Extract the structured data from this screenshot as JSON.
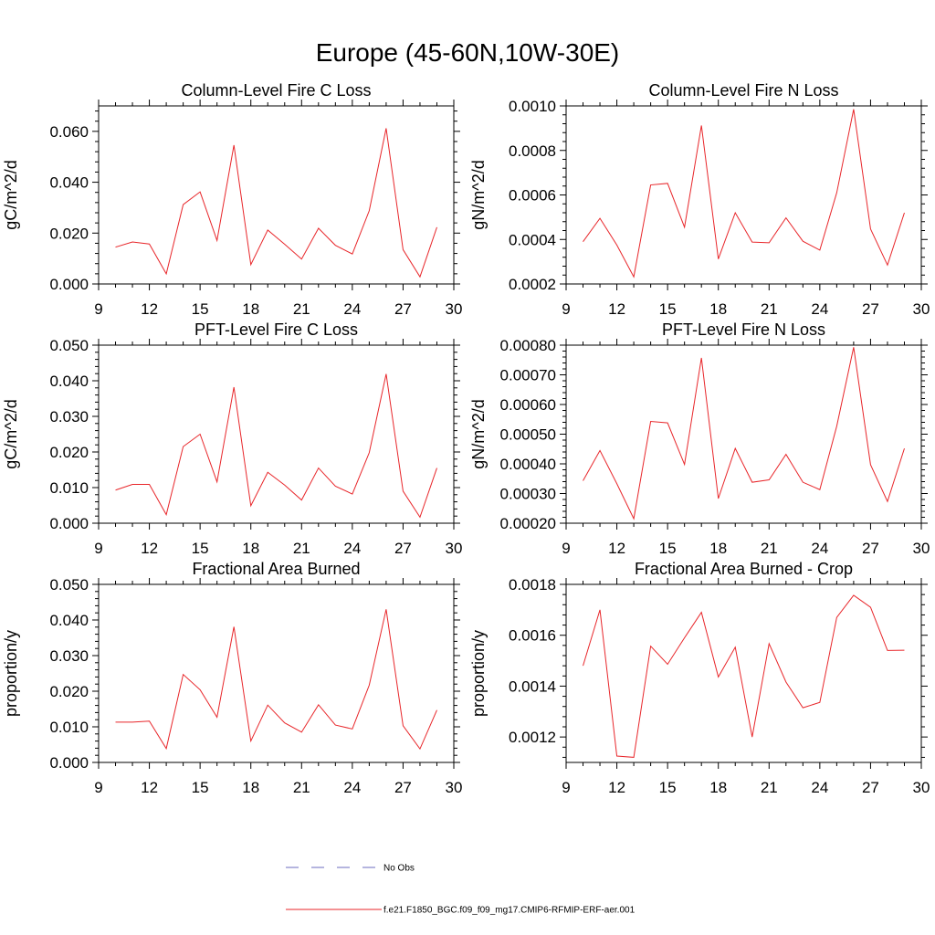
{
  "figure_title": "Europe (45-60N,10W-30E)",
  "legend": [
    {
      "label": "No Obs",
      "color": "#6b6bbf",
      "dash": true
    },
    {
      "label": "f.e21.F1850_BGC.f09_f09_mg17.CMIP6-RFMIP-ERF-aer.001",
      "color": "#e8262a",
      "dash": false
    }
  ],
  "chart_data": [
    {
      "type": "line",
      "title": "Column-Level Fire C Loss",
      "ylabel": "gC/m^2/d",
      "xlim": [
        9,
        30
      ],
      "xticks": [
        "9",
        "12",
        "15",
        "18",
        "21",
        "24",
        "27",
        "30"
      ],
      "ylim": [
        0,
        0.07
      ],
      "yticks": [
        "0.000",
        "0.020",
        "0.040",
        "0.060"
      ],
      "x": [
        10,
        11,
        12,
        13,
        14,
        15,
        16,
        17,
        18,
        19,
        20,
        21,
        22,
        23,
        24,
        25,
        26,
        27,
        28,
        29
      ],
      "series": [
        {
          "color": "#e8262a",
          "values": [
            0.0145,
            0.0165,
            0.0157,
            0.004,
            0.0312,
            0.0362,
            0.0171,
            0.0546,
            0.0076,
            0.0212,
            0.0156,
            0.0098,
            0.0219,
            0.0152,
            0.0118,
            0.0288,
            0.0612,
            0.0135,
            0.0028,
            0.0223
          ]
        }
      ]
    },
    {
      "type": "line",
      "title": "Column-Level Fire N Loss",
      "ylabel": "gN/m^2/d",
      "xlim": [
        9,
        30
      ],
      "xticks": [
        "9",
        "12",
        "15",
        "18",
        "21",
        "24",
        "27",
        "30"
      ],
      "ylim": [
        0.0002,
        0.001
      ],
      "yticks": [
        "0.0002",
        "0.0004",
        "0.0006",
        "0.0008",
        "0.0010"
      ],
      "x": [
        10,
        11,
        12,
        13,
        14,
        15,
        16,
        17,
        18,
        19,
        20,
        21,
        22,
        23,
        24,
        25,
        26,
        27,
        28,
        29
      ],
      "series": [
        {
          "color": "#e8262a",
          "values": [
            0.00039,
            0.000495,
            0.000375,
            0.000232,
            0.000645,
            0.000652,
            0.000455,
            0.000912,
            0.000312,
            0.00052,
            0.000388,
            0.000385,
            0.000497,
            0.000392,
            0.000352,
            0.00061,
            0.000985,
            0.000447,
            0.000285,
            0.00052
          ]
        }
      ]
    },
    {
      "type": "line",
      "title": "PFT-Level Fire C Loss",
      "ylabel": "gC/m^2/d",
      "xlim": [
        9,
        30
      ],
      "xticks": [
        "9",
        "12",
        "15",
        "18",
        "21",
        "24",
        "27",
        "30"
      ],
      "ylim": [
        0,
        0.05
      ],
      "yticks": [
        "0.000",
        "0.010",
        "0.020",
        "0.030",
        "0.040",
        "0.050"
      ],
      "x": [
        10,
        11,
        12,
        13,
        14,
        15,
        16,
        17,
        18,
        19,
        20,
        21,
        22,
        23,
        24,
        25,
        26,
        27,
        28,
        29
      ],
      "series": [
        {
          "color": "#e8262a",
          "values": [
            0.0093,
            0.0109,
            0.0109,
            0.0024,
            0.0215,
            0.025,
            0.0116,
            0.0382,
            0.0049,
            0.0143,
            0.0107,
            0.0065,
            0.0155,
            0.0104,
            0.0082,
            0.0198,
            0.0419,
            0.009,
            0.0017,
            0.0155
          ]
        }
      ]
    },
    {
      "type": "line",
      "title": "PFT-Level Fire N Loss",
      "ylabel": "gN/m^2/d",
      "xlim": [
        9,
        30
      ],
      "xticks": [
        "9",
        "12",
        "15",
        "18",
        "21",
        "24",
        "27",
        "30"
      ],
      "ylim": [
        0.0002,
        0.0008
      ],
      "yticks": [
        "0.00020",
        "0.00030",
        "0.00040",
        "0.00050",
        "0.00060",
        "0.00070",
        "0.00080"
      ],
      "x": [
        10,
        11,
        12,
        13,
        14,
        15,
        16,
        17,
        18,
        19,
        20,
        21,
        22,
        23,
        24,
        25,
        26,
        27,
        28,
        29
      ],
      "series": [
        {
          "color": "#e8262a",
          "values": [
            0.000343,
            0.000445,
            0.000333,
            0.000215,
            0.000543,
            0.000538,
            0.000398,
            0.000757,
            0.000283,
            0.000452,
            0.000338,
            0.000346,
            0.000432,
            0.000338,
            0.000313,
            0.000527,
            0.000793,
            0.000397,
            0.000273,
            0.000452
          ]
        }
      ]
    },
    {
      "type": "line",
      "title": "Fractional Area Burned",
      "ylabel": "proportion/y",
      "xlim": [
        9,
        30
      ],
      "xticks": [
        "9",
        "12",
        "15",
        "18",
        "21",
        "24",
        "27",
        "30"
      ],
      "ylim": [
        0,
        0.05
      ],
      "yticks": [
        "0.000",
        "0.010",
        "0.020",
        "0.030",
        "0.040",
        "0.050"
      ],
      "x": [
        10,
        11,
        12,
        13,
        14,
        15,
        16,
        17,
        18,
        19,
        20,
        21,
        22,
        23,
        24,
        25,
        26,
        27,
        28,
        29
      ],
      "series": [
        {
          "color": "#e8262a",
          "values": [
            0.0113,
            0.0113,
            0.0116,
            0.0039,
            0.0247,
            0.0204,
            0.0127,
            0.0381,
            0.006,
            0.0161,
            0.0111,
            0.0085,
            0.0162,
            0.0105,
            0.0094,
            0.0217,
            0.043,
            0.0103,
            0.0038,
            0.0147
          ]
        }
      ]
    },
    {
      "type": "line",
      "title": "Fractional Area Burned - Crop",
      "ylabel": "proportion/y",
      "xlim": [
        9,
        30
      ],
      "xticks": [
        "9",
        "12",
        "15",
        "18",
        "21",
        "24",
        "27",
        "30"
      ],
      "ylim": [
        0.0011,
        0.0018
      ],
      "yticks": [
        "0.0012",
        "0.0014",
        "0.0016",
        "0.0018"
      ],
      "x": [
        10,
        11,
        12,
        13,
        14,
        15,
        16,
        17,
        18,
        19,
        20,
        21,
        22,
        23,
        24,
        25,
        26,
        27,
        28,
        29
      ],
      "series": [
        {
          "color": "#e8262a",
          "values": [
            0.00148,
            0.0017,
            0.001125,
            0.00112,
            0.001557,
            0.001486,
            0.00159,
            0.00169,
            0.001436,
            0.001553,
            0.0012,
            0.001567,
            0.001416,
            0.001315,
            0.001336,
            0.00167,
            0.001757,
            0.00171,
            0.00154,
            0.001541
          ]
        }
      ]
    }
  ]
}
